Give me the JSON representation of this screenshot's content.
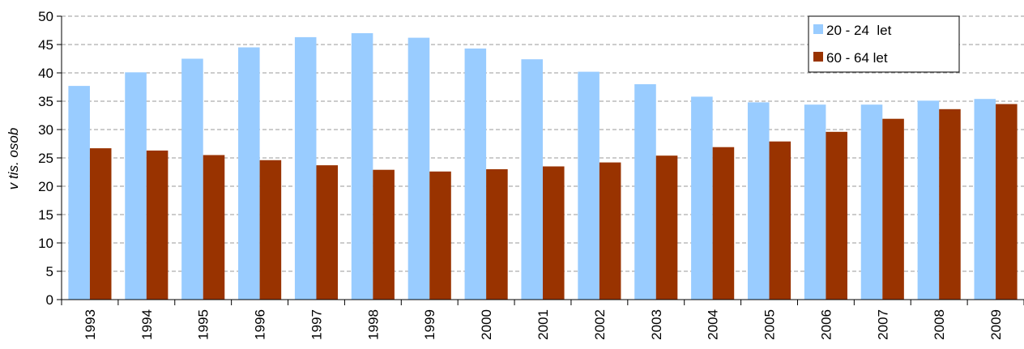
{
  "chart_data": {
    "type": "bar",
    "categories": [
      "1993",
      "1994",
      "1995",
      "1996",
      "1997",
      "1998",
      "1999",
      "2000",
      "2001",
      "2002",
      "2003",
      "2004",
      "2005",
      "2006",
      "2007",
      "2008",
      "2009"
    ],
    "series": [
      {
        "name": "20 - 24  let",
        "color": "#99ccff",
        "values": [
          37.7,
          40.1,
          42.5,
          44.5,
          46.3,
          47.0,
          46.2,
          44.3,
          42.4,
          40.2,
          38.0,
          35.8,
          34.8,
          34.4,
          34.4,
          35.1,
          35.4
        ]
      },
      {
        "name": "60 - 64 let",
        "color": "#993300",
        "values": [
          26.7,
          26.3,
          25.5,
          24.6,
          23.7,
          22.9,
          22.6,
          23.0,
          23.5,
          24.2,
          25.4,
          26.9,
          27.9,
          29.6,
          31.9,
          33.6,
          34.5
        ]
      }
    ],
    "ylabel": "v tis. osob",
    "xlabel": "",
    "ylim": [
      0,
      50
    ],
    "yticks": [
      0,
      5,
      10,
      15,
      20,
      25,
      30,
      35,
      40,
      45,
      50
    ],
    "grid": true,
    "legend_position": "top-right"
  }
}
